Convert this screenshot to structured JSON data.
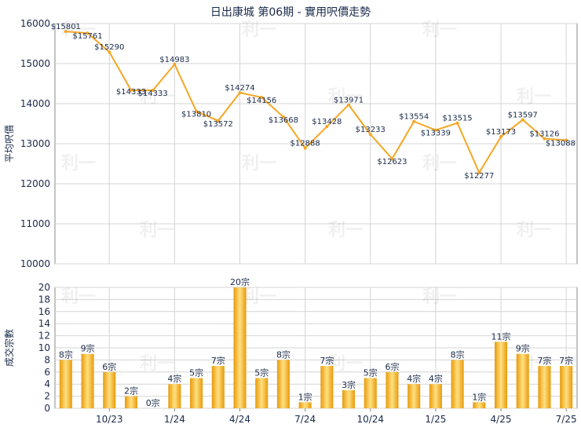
{
  "title": "日出康城 第06期 - 實用呎價走勢",
  "colors": {
    "line": "#f5a623",
    "bar_light": "#ffe080",
    "bar_dark": "#e89a0a",
    "grid": "#d4d4d4",
    "axis": "#888888",
    "text": "#1a2a4a"
  },
  "watermark": "利一",
  "chart_data": [
    {
      "type": "line",
      "ylabel": "平均呎價",
      "ylim": [
        10000,
        16000
      ],
      "yticks": [
        "16000",
        "15000",
        "14000",
        "13000",
        "12000",
        "11000",
        "10000"
      ],
      "value_prefix": "$",
      "values": [
        15801,
        15761,
        15290,
        14333,
        14333,
        14983,
        13810,
        13572,
        14274,
        14156,
        13668,
        12888,
        13428,
        13971,
        13233,
        12623,
        13554,
        13339,
        13515,
        12277,
        13173,
        13597,
        13126,
        13088
      ],
      "labels": [
        "$15801",
        "$15761",
        "$15290",
        "$14333",
        "$14333",
        "$14983",
        "$13810",
        "$13572",
        "$14274",
        "$14156",
        "$13668",
        "$12888",
        "$13428",
        "$13971",
        "$13233",
        "$12623",
        "$13554",
        "$13339",
        "$13515",
        "$12277",
        "$13173",
        "$13597",
        "$13126",
        "$13088"
      ]
    },
    {
      "type": "bar",
      "ylabel": "成交宗數",
      "ylim": [
        0,
        20
      ],
      "yticks": [
        "20",
        "18",
        "16",
        "14",
        "12",
        "10",
        "8",
        "6",
        "4",
        "2",
        "0"
      ],
      "value_suffix": "宗",
      "values": [
        8,
        9,
        6,
        2,
        0,
        4,
        5,
        7,
        20,
        5,
        8,
        1,
        7,
        3,
        5,
        6,
        4,
        4,
        8,
        1,
        11,
        9,
        7,
        7
      ],
      "labels": [
        "8宗",
        "9宗",
        "6宗",
        "2宗",
        "0宗",
        "4宗",
        "5宗",
        "7宗",
        "20宗",
        "5宗",
        "8宗",
        "1宗",
        "7宗",
        "3宗",
        "5宗",
        "6宗",
        "4宗",
        "4宗",
        "8宗",
        "1宗",
        "11宗",
        "9宗",
        "7宗",
        "7宗"
      ],
      "xticks": [
        "10/23",
        "1/24",
        "4/24",
        "7/24",
        "10/24",
        "1/25",
        "4/25",
        "7/25"
      ]
    }
  ]
}
